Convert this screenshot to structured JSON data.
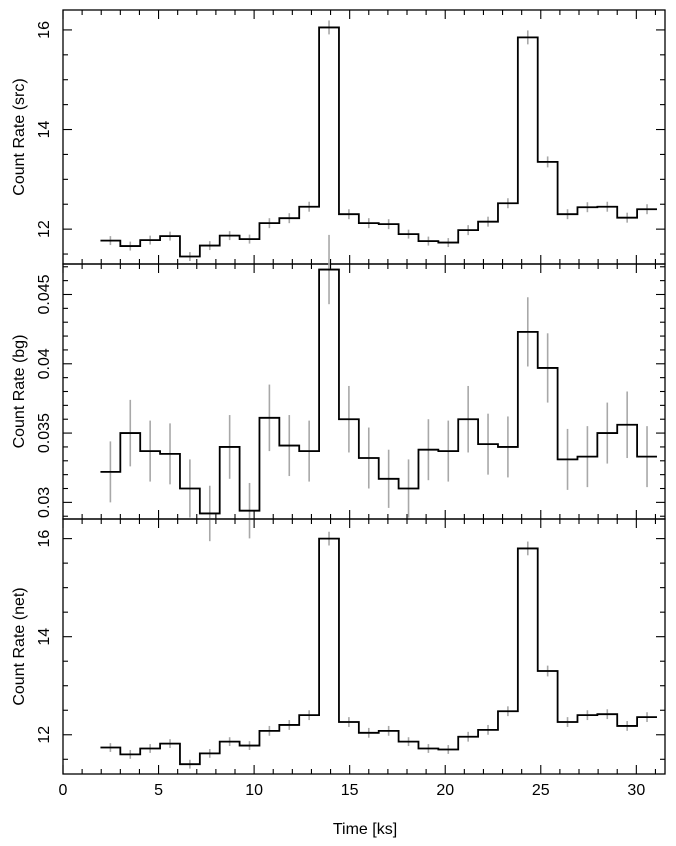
{
  "chart_data": {
    "type": "line",
    "style": "step histogram with error bars, three stacked panels sharing x axis",
    "xlabel": "Time [ks]",
    "xlim": [
      0,
      31.5
    ],
    "x_ticks": [
      "0",
      "5",
      "10",
      "15",
      "20",
      "25",
      "30"
    ],
    "bin_width": 1.04,
    "x": [
      2.48,
      3.52,
      4.56,
      5.6,
      6.64,
      7.68,
      8.72,
      9.76,
      10.8,
      11.84,
      12.88,
      13.92,
      14.96,
      16.0,
      17.04,
      18.08,
      19.12,
      20.16,
      21.2,
      22.24,
      23.28,
      24.32,
      25.36,
      26.4,
      27.44,
      28.48,
      29.52,
      30.56
    ],
    "panels": [
      {
        "ylabel": "Count Rate (src)",
        "ylim": [
          11.3,
          16.4
        ],
        "y_ticks": [
          "12",
          "14",
          "16"
        ],
        "error_color": "#a8a8a8",
        "values": [
          11.77,
          11.66,
          11.78,
          11.86,
          11.45,
          11.67,
          11.87,
          11.8,
          12.12,
          12.22,
          12.45,
          16.05,
          12.3,
          12.12,
          12.1,
          11.9,
          11.76,
          11.73,
          11.98,
          12.15,
          12.52,
          15.85,
          13.35,
          12.3,
          12.44,
          12.45,
          12.23,
          12.4
        ],
        "errors": [
          0.09,
          0.09,
          0.09,
          0.09,
          0.09,
          0.09,
          0.09,
          0.09,
          0.1,
          0.1,
          0.1,
          0.14,
          0.1,
          0.1,
          0.1,
          0.09,
          0.09,
          0.09,
          0.1,
          0.1,
          0.1,
          0.14,
          0.11,
          0.1,
          0.1,
          0.1,
          0.1,
          0.1
        ]
      },
      {
        "ylabel": "Count Rate (bg)",
        "ylim": [
          0.0288,
          0.0472
        ],
        "y_ticks": [
          "0.03",
          "0.035",
          "0.04",
          "0.045"
        ],
        "error_color": "#a8a8a8",
        "values": [
          0.0322,
          0.035,
          0.0337,
          0.0335,
          0.031,
          0.0292,
          0.034,
          0.0294,
          0.0361,
          0.0341,
          0.0337,
          0.0468,
          0.036,
          0.0332,
          0.0317,
          0.031,
          0.0338,
          0.0337,
          0.036,
          0.0342,
          0.034,
          0.0423,
          0.0397,
          0.0331,
          0.0333,
          0.035,
          0.0356,
          0.0333
        ],
        "errors": [
          0.0022,
          0.0024,
          0.0022,
          0.0022,
          0.0021,
          0.002,
          0.0023,
          0.002,
          0.0024,
          0.0022,
          0.0022,
          0.0025,
          0.0024,
          0.0022,
          0.0021,
          0.0021,
          0.0022,
          0.0022,
          0.0024,
          0.0022,
          0.0022,
          0.0025,
          0.0025,
          0.0022,
          0.0022,
          0.0022,
          0.0024,
          0.0022
        ]
      },
      {
        "ylabel": "Count Rate (net)",
        "ylim": [
          11.2,
          16.4
        ],
        "y_ticks": [
          "12",
          "14",
          "16"
        ],
        "error_color": "#a8a8a8",
        "values": [
          11.74,
          11.6,
          11.72,
          11.82,
          11.4,
          11.62,
          11.86,
          11.78,
          12.08,
          12.2,
          12.4,
          16.0,
          12.26,
          12.04,
          12.08,
          11.86,
          11.72,
          11.7,
          11.96,
          12.1,
          12.48,
          15.8,
          13.3,
          12.26,
          12.4,
          12.42,
          12.18,
          12.36
        ],
        "errors": [
          0.09,
          0.09,
          0.09,
          0.09,
          0.09,
          0.09,
          0.09,
          0.09,
          0.1,
          0.1,
          0.1,
          0.14,
          0.1,
          0.1,
          0.1,
          0.09,
          0.09,
          0.09,
          0.1,
          0.1,
          0.1,
          0.14,
          0.11,
          0.1,
          0.1,
          0.1,
          0.1,
          0.1
        ]
      }
    ]
  }
}
